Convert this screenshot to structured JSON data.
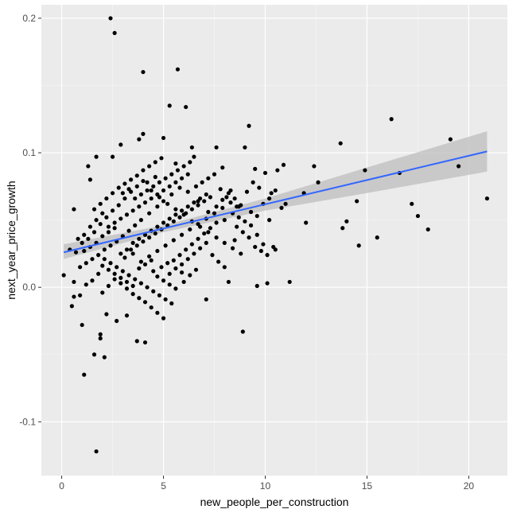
{
  "chart_data": {
    "type": "scatter",
    "title": "",
    "xlabel": "new_people_per_construction",
    "ylabel": "next_year_price_growth",
    "xlim": [
      -1.0,
      21.9
    ],
    "ylim": [
      -0.14,
      0.21
    ],
    "x_ticks": [
      0,
      5,
      10,
      15,
      20
    ],
    "x_tick_labels": [
      "0",
      "5",
      "10",
      "15",
      "20"
    ],
    "y_ticks": [
      -0.1,
      0.0,
      0.1,
      0.2
    ],
    "y_tick_labels": [
      "-0.1",
      "0.0",
      "0.1",
      "0.2"
    ],
    "grid": true,
    "legend": "none",
    "colors": {
      "panel_background": "#ebebeb",
      "grid_major": "#ffffff",
      "grid_minor": "#f5f5f5",
      "points": "#000000",
      "smooth_line": "#3366ff",
      "confidence_band": "#bdbdbd"
    },
    "smooth": {
      "method": "lm",
      "x": [
        0.1,
        5,
        10,
        15,
        20.9
      ],
      "y": [
        0.026,
        0.0437,
        0.0617,
        0.0797,
        0.101
      ],
      "ci_low": [
        0.021,
        0.041,
        0.057,
        0.07,
        0.086
      ],
      "ci_high": [
        0.032,
        0.046,
        0.066,
        0.089,
        0.116
      ]
    },
    "points": [
      [
        2.4,
        0.2
      ],
      [
        2.6,
        0.189
      ],
      [
        4.0,
        0.16
      ],
      [
        5.7,
        0.162
      ],
      [
        5.3,
        0.135
      ],
      [
        6.1,
        0.134
      ],
      [
        9.2,
        0.12
      ],
      [
        16.2,
        0.125
      ],
      [
        13.7,
        0.107
      ],
      [
        19.1,
        0.11
      ],
      [
        19.5,
        0.09
      ],
      [
        20.9,
        0.066
      ],
      [
        16.6,
        0.085
      ],
      [
        17.2,
        0.062
      ],
      [
        17.5,
        0.053
      ],
      [
        18.0,
        0.043
      ],
      [
        15.5,
        0.037
      ],
      [
        14.6,
        0.031
      ],
      [
        14.5,
        0.064
      ],
      [
        14.0,
        0.049
      ],
      [
        13.8,
        0.044
      ],
      [
        14.9,
        0.087
      ],
      [
        12.4,
        0.09
      ],
      [
        12.6,
        0.078
      ],
      [
        12.0,
        0.048
      ],
      [
        11.9,
        0.07
      ],
      [
        11.2,
        0.004
      ],
      [
        10.1,
        0.003
      ],
      [
        9.6,
        0.001
      ],
      [
        8.9,
        -0.033
      ],
      [
        8.2,
        0.004
      ],
      [
        7.1,
        -0.009
      ],
      [
        1.7,
        -0.122
      ],
      [
        1.1,
        -0.065
      ],
      [
        1.6,
        -0.05
      ],
      [
        1.9,
        -0.038
      ],
      [
        1.9,
        -0.035
      ],
      [
        2.1,
        -0.052
      ],
      [
        1.0,
        -0.028
      ],
      [
        0.1,
        0.009
      ],
      [
        0.6,
        -0.007
      ],
      [
        0.5,
        -0.014
      ],
      [
        0.9,
        -0.006
      ],
      [
        0.6,
        0.004
      ],
      [
        1.3,
        0.09
      ],
      [
        1.7,
        0.097
      ],
      [
        1.4,
        0.08
      ],
      [
        2.5,
        0.097
      ],
      [
        2.9,
        0.106
      ],
      [
        3.8,
        0.11
      ],
      [
        4.0,
        0.114
      ],
      [
        5.0,
        0.111
      ],
      [
        6.4,
        0.104
      ],
      [
        7.6,
        0.104
      ],
      [
        9.0,
        0.104
      ],
      [
        4.1,
        -0.041
      ],
      [
        3.7,
        -0.04
      ],
      [
        2.7,
        -0.025
      ],
      [
        3.2,
        -0.021
      ],
      [
        2.2,
        -0.02
      ],
      [
        4.2,
        0.078
      ],
      [
        4.6,
        0.082
      ],
      [
        5.6,
        0.092
      ],
      [
        6.5,
        0.097
      ],
      [
        7.9,
        0.089
      ],
      [
        8.3,
        0.072
      ],
      [
        8.6,
        0.06
      ],
      [
        9.3,
        0.046
      ],
      [
        9.6,
        0.039
      ],
      [
        9.9,
        0.032
      ],
      [
        10.5,
        0.028
      ],
      [
        10.2,
        0.05
      ],
      [
        10.8,
        0.059
      ],
      [
        11.0,
        0.062
      ],
      [
        10.3,
        0.07
      ],
      [
        10.6,
        0.087
      ],
      [
        10.9,
        0.091
      ],
      [
        10.0,
        0.085
      ],
      [
        9.5,
        0.088
      ],
      [
        9.1,
        0.071
      ],
      [
        8.7,
        0.06
      ],
      [
        8.0,
        0.05
      ],
      [
        7.6,
        0.048
      ],
      [
        7.2,
        0.056
      ],
      [
        6.7,
        0.064
      ],
      [
        6.2,
        0.071
      ],
      [
        5.8,
        0.074
      ],
      [
        5.4,
        0.069
      ],
      [
        5.0,
        0.064
      ],
      [
        4.7,
        0.06
      ],
      [
        4.3,
        0.055
      ],
      [
        3.9,
        0.05
      ],
      [
        3.6,
        0.046
      ],
      [
        3.3,
        0.042
      ],
      [
        3.0,
        0.038
      ],
      [
        2.7,
        0.034
      ],
      [
        2.4,
        0.031
      ],
      [
        2.1,
        0.028
      ],
      [
        1.8,
        0.024
      ],
      [
        1.5,
        0.021
      ],
      [
        1.2,
        0.018
      ],
      [
        0.9,
        0.015
      ],
      [
        0.7,
        0.026
      ],
      [
        1.0,
        0.033
      ],
      [
        1.3,
        0.036
      ],
      [
        1.6,
        0.041
      ],
      [
        1.9,
        0.047
      ],
      [
        2.2,
        0.052
      ],
      [
        2.5,
        0.057
      ],
      [
        2.8,
        0.061
      ],
      [
        3.1,
        0.066
      ],
      [
        3.4,
        0.071
      ],
      [
        3.7,
        0.075
      ],
      [
        4.0,
        0.079
      ],
      [
        4.4,
        0.072
      ],
      [
        4.8,
        0.067
      ],
      [
        5.2,
        0.062
      ],
      [
        5.6,
        0.058
      ],
      [
        6.0,
        0.054
      ],
      [
        6.4,
        0.049
      ],
      [
        6.8,
        0.045
      ],
      [
        7.2,
        0.041
      ],
      [
        7.6,
        0.037
      ],
      [
        8.0,
        0.033
      ],
      [
        8.4,
        0.029
      ],
      [
        8.8,
        0.025
      ],
      [
        3.0,
        0.012
      ],
      [
        3.3,
        0.009
      ],
      [
        3.6,
        0.006
      ],
      [
        3.9,
        0.003
      ],
      [
        4.2,
        0.0
      ],
      [
        4.5,
        -0.003
      ],
      [
        4.8,
        -0.006
      ],
      [
        5.1,
        -0.009
      ],
      [
        5.4,
        -0.012
      ],
      [
        2.7,
        0.015
      ],
      [
        2.4,
        0.018
      ],
      [
        2.1,
        0.021
      ],
      [
        1.8,
        0.01
      ],
      [
        1.5,
        0.005
      ],
      [
        1.2,
        0.002
      ],
      [
        2.0,
        -0.004
      ],
      [
        2.3,
        0.001
      ],
      [
        2.6,
        0.006
      ],
      [
        2.9,
        0.003
      ],
      [
        3.2,
        -0.001
      ],
      [
        3.5,
        -0.005
      ],
      [
        3.8,
        -0.008
      ],
      [
        4.1,
        -0.011
      ],
      [
        4.4,
        -0.015
      ],
      [
        4.7,
        -0.019
      ],
      [
        5.0,
        -0.023
      ],
      [
        3.4,
        0.028
      ],
      [
        3.7,
        0.031
      ],
      [
        4.0,
        0.034
      ],
      [
        4.3,
        0.037
      ],
      [
        4.6,
        0.04
      ],
      [
        4.9,
        0.043
      ],
      [
        5.2,
        0.046
      ],
      [
        5.5,
        0.049
      ],
      [
        5.8,
        0.052
      ],
      [
        6.1,
        0.055
      ],
      [
        6.4,
        0.058
      ],
      [
        6.7,
        0.061
      ],
      [
        7.0,
        0.064
      ],
      [
        7.3,
        0.067
      ],
      [
        2.3,
        0.045
      ],
      [
        2.6,
        0.048
      ],
      [
        2.9,
        0.051
      ],
      [
        3.2,
        0.054
      ],
      [
        3.5,
        0.057
      ],
      [
        3.8,
        0.06
      ],
      [
        4.1,
        0.063
      ],
      [
        4.4,
        0.066
      ],
      [
        4.7,
        0.069
      ],
      [
        5.0,
        0.072
      ],
      [
        5.3,
        0.075
      ],
      [
        5.6,
        0.078
      ],
      [
        5.9,
        0.081
      ],
      [
        6.2,
        0.084
      ],
      [
        1.6,
        0.058
      ],
      [
        1.9,
        0.062
      ],
      [
        2.2,
        0.066
      ],
      [
        2.5,
        0.07
      ],
      [
        2.8,
        0.074
      ],
      [
        3.1,
        0.077
      ],
      [
        3.4,
        0.08
      ],
      [
        3.7,
        0.083
      ],
      [
        4.0,
        0.087
      ],
      [
        4.3,
        0.09
      ],
      [
        4.6,
        0.093
      ],
      [
        4.9,
        0.096
      ],
      [
        5.5,
        0.02
      ],
      [
        5.8,
        0.024
      ],
      [
        6.1,
        0.028
      ],
      [
        6.4,
        0.032
      ],
      [
        6.7,
        0.036
      ],
      [
        7.0,
        0.04
      ],
      [
        7.3,
        0.044
      ],
      [
        7.6,
        0.06
      ],
      [
        7.9,
        0.065
      ],
      [
        8.2,
        0.07
      ],
      [
        8.5,
        0.066
      ],
      [
        8.8,
        0.061
      ],
      [
        5.3,
        0.01
      ],
      [
        5.6,
        0.014
      ],
      [
        5.9,
        0.017
      ],
      [
        6.2,
        0.021
      ],
      [
        6.5,
        0.025
      ],
      [
        6.8,
        0.029
      ],
      [
        7.1,
        0.033
      ],
      [
        7.4,
        0.024
      ],
      [
        7.7,
        0.019
      ],
      [
        8.0,
        0.015
      ],
      [
        6.0,
        0.004
      ],
      [
        6.3,
        0.009
      ],
      [
        6.6,
        0.013
      ],
      [
        4.9,
        0.015
      ],
      [
        5.2,
        0.018
      ],
      [
        4.5,
        0.012
      ],
      [
        3.1,
        0.022
      ],
      [
        3.5,
        0.025
      ],
      [
        3.9,
        0.019
      ],
      [
        4.3,
        0.023
      ],
      [
        4.7,
        0.027
      ],
      [
        5.1,
        0.031
      ],
      [
        5.5,
        0.035
      ],
      [
        5.9,
        0.039
      ],
      [
        6.3,
        0.043
      ],
      [
        6.7,
        0.047
      ],
      [
        7.1,
        0.051
      ],
      [
        7.5,
        0.055
      ],
      [
        7.9,
        0.059
      ],
      [
        8.3,
        0.063
      ],
      [
        2.0,
        0.038
      ],
      [
        2.3,
        0.041
      ],
      [
        2.6,
        0.044
      ],
      [
        2.9,
        0.025
      ],
      [
        3.2,
        0.028
      ],
      [
        3.5,
        0.033
      ],
      [
        3.8,
        0.036
      ],
      [
        4.1,
        0.039
      ],
      [
        4.4,
        0.042
      ],
      [
        4.7,
        0.045
      ],
      [
        5.0,
        0.048
      ],
      [
        5.3,
        0.051
      ],
      [
        5.6,
        0.054
      ],
      [
        5.9,
        0.057
      ],
      [
        6.2,
        0.06
      ],
      [
        6.5,
        0.063
      ],
      [
        6.8,
        0.066
      ],
      [
        7.1,
        0.069
      ],
      [
        1.4,
        0.03
      ],
      [
        1.7,
        0.033
      ],
      [
        2.0,
        0.016
      ],
      [
        2.3,
        0.013
      ],
      [
        2.6,
        0.01
      ],
      [
        2.9,
        0.007
      ],
      [
        3.2,
        0.004
      ],
      [
        3.5,
        0.001
      ],
      [
        3.8,
        0.014
      ],
      [
        4.1,
        0.017
      ],
      [
        4.4,
        0.02
      ],
      [
        4.7,
        0.008
      ],
      [
        5.0,
        0.005
      ],
      [
        5.3,
        0.002
      ],
      [
        5.6,
        -0.001
      ],
      [
        5.9,
        0.011
      ],
      [
        0.8,
        0.036
      ],
      [
        1.1,
        0.039
      ],
      [
        1.4,
        0.045
      ],
      [
        1.7,
        0.05
      ],
      [
        2.0,
        0.055
      ],
      [
        0.6,
        0.058
      ],
      [
        1.1,
        0.027
      ],
      [
        0.4,
        0.028
      ],
      [
        3.0,
        0.07
      ],
      [
        3.3,
        0.073
      ],
      [
        3.6,
        0.066
      ],
      [
        3.9,
        0.069
      ],
      [
        4.2,
        0.072
      ],
      [
        4.5,
        0.075
      ],
      [
        4.8,
        0.078
      ],
      [
        5.1,
        0.081
      ],
      [
        5.4,
        0.084
      ],
      [
        5.7,
        0.087
      ],
      [
        6.0,
        0.09
      ],
      [
        6.3,
        0.093
      ],
      [
        6.6,
        0.075
      ],
      [
        6.9,
        0.078
      ],
      [
        7.2,
        0.081
      ],
      [
        7.5,
        0.084
      ],
      [
        7.8,
        0.073
      ],
      [
        8.1,
        0.067
      ],
      [
        8.4,
        0.055
      ],
      [
        8.7,
        0.052
      ],
      [
        9.0,
        0.049
      ],
      [
        9.3,
        0.056
      ],
      [
        9.6,
        0.053
      ],
      [
        9.9,
        0.062
      ],
      [
        10.2,
        0.066
      ],
      [
        10.5,
        0.072
      ],
      [
        9.4,
        0.078
      ],
      [
        9.7,
        0.074
      ],
      [
        8.6,
        0.045
      ],
      [
        8.9,
        0.041
      ],
      [
        9.2,
        0.037
      ],
      [
        9.5,
        0.03
      ],
      [
        9.8,
        0.027
      ],
      [
        10.1,
        0.024
      ],
      [
        10.4,
        0.03
      ],
      [
        8.5,
        0.035
      ]
    ]
  }
}
